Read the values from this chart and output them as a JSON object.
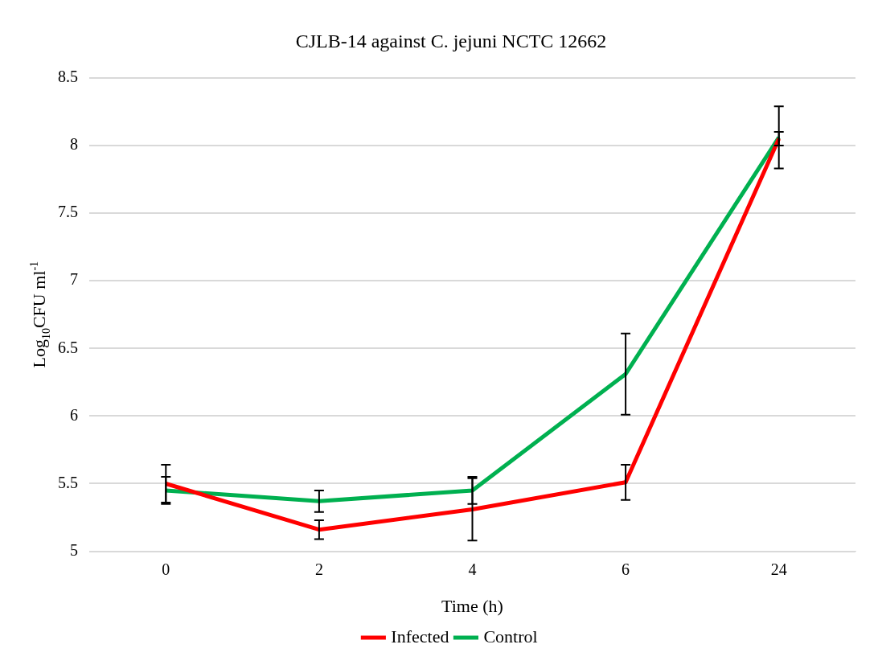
{
  "chart_data": {
    "type": "line",
    "title": "CJLB-14 against C. jejuni NCTC 12662",
    "xlabel": "Time (h)",
    "ylabel": "Log$_{10}$CFU ml$^{-1}$",
    "categories": [
      "0",
      "2",
      "4",
      "6",
      "24"
    ],
    "series": [
      {
        "name": "Infected",
        "color": "#ff0000",
        "values": [
          5.5,
          5.16,
          5.31,
          5.51,
          8.05
        ],
        "errors": [
          0.14,
          0.07,
          0.23,
          0.13,
          0.05
        ]
      },
      {
        "name": "Control",
        "color": "#00b050",
        "values": [
          5.45,
          5.37,
          5.45,
          6.31,
          8.06
        ],
        "errors": [
          0.1,
          0.08,
          0.1,
          0.3,
          0.23
        ]
      }
    ],
    "ylim": [
      5,
      8.5
    ],
    "yticks": [
      5,
      5.5,
      6,
      6.5,
      7,
      7.5,
      8,
      8.5
    ],
    "grid": "y",
    "legend": "bottom",
    "marker": "none",
    "line_style": "solid"
  }
}
